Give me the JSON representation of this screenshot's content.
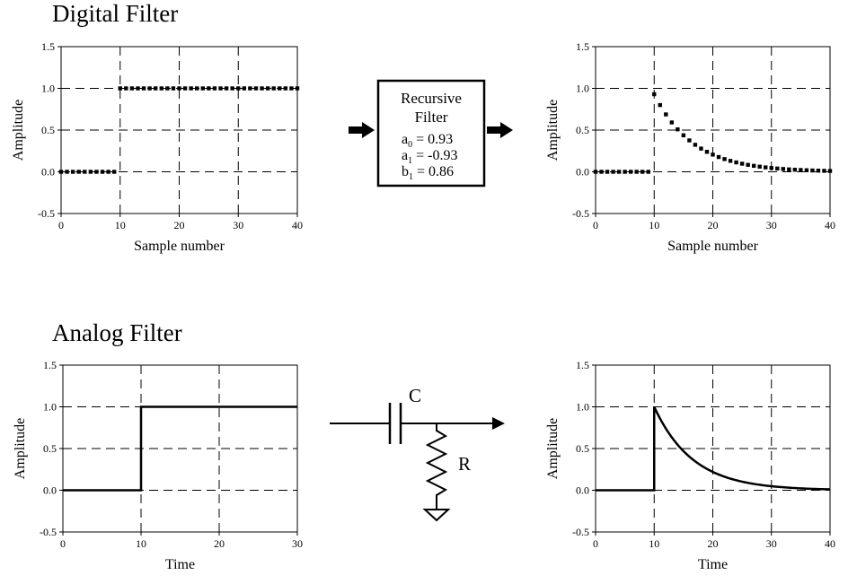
{
  "headings": {
    "digital": "Digital Filter",
    "analog": "Analog Filter"
  },
  "filter_box": {
    "line1": "Recursive",
    "line2": "Filter",
    "coefficients": [
      {
        "symbol": "a",
        "sub": "0",
        "rest": " = 0.93"
      },
      {
        "symbol": "a",
        "sub": "1",
        "rest": " = -0.93"
      },
      {
        "symbol": "b",
        "sub": "1",
        "rest": " = 0.86"
      }
    ]
  },
  "circuit": {
    "capacitor_label": "C",
    "resistor_label": "R"
  },
  "chart_data": [
    {
      "id": "digital-input",
      "type": "scatter",
      "xlabel": "Sample number",
      "ylabel": "Amplitude",
      "xlim": [
        0,
        40
      ],
      "ylim": [
        -0.5,
        1.5
      ],
      "xticks": [
        "0",
        "10",
        "20",
        "30",
        "40"
      ],
      "yticks": [
        "-0.5",
        "0.0",
        "0.5",
        "1.0",
        "1.5"
      ],
      "grid": "dashed",
      "signal": {
        "kind": "step-samples",
        "n_start": 0,
        "n_end": 40,
        "step_at": 10,
        "low": 0.0,
        "high": 1.0
      }
    },
    {
      "id": "digital-output",
      "type": "scatter",
      "xlabel": "Sample number",
      "ylabel": "Amplitude",
      "xlim": [
        0,
        40
      ],
      "ylim": [
        -0.5,
        1.5
      ],
      "xticks": [
        "0",
        "10",
        "20",
        "30",
        "40"
      ],
      "yticks": [
        "-0.5",
        "0.0",
        "0.5",
        "1.0",
        "1.5"
      ],
      "grid": "dashed",
      "signal": {
        "kind": "decay-samples",
        "n_start": 0,
        "n_end": 40,
        "step_at": 10,
        "peak": 0.93,
        "ratio": 0.86
      }
    },
    {
      "id": "analog-input",
      "type": "line",
      "xlabel": "Time",
      "ylabel": "Amplitude",
      "xlim": [
        0,
        30
      ],
      "ylim": [
        -0.5,
        1.5
      ],
      "xticks": [
        "0",
        "10",
        "20",
        "30"
      ],
      "yticks": [
        "-0.5",
        "0.0",
        "0.5",
        "1.0",
        "1.5"
      ],
      "grid": "dashed",
      "signal": {
        "kind": "step-line",
        "step_at": 10,
        "low": 0.0,
        "high": 1.0
      }
    },
    {
      "id": "analog-output",
      "type": "line",
      "xlabel": "Time",
      "ylabel": "Amplitude",
      "xlim": [
        0,
        40
      ],
      "ylim": [
        -0.5,
        1.5
      ],
      "xticks": [
        "0",
        "10",
        "20",
        "30",
        "40"
      ],
      "yticks": [
        "-0.5",
        "0.0",
        "0.5",
        "1.0",
        "1.5"
      ],
      "grid": "dashed",
      "signal": {
        "kind": "decay-line",
        "step_at": 10,
        "peak": 1.0,
        "tau": 6.6
      }
    }
  ]
}
